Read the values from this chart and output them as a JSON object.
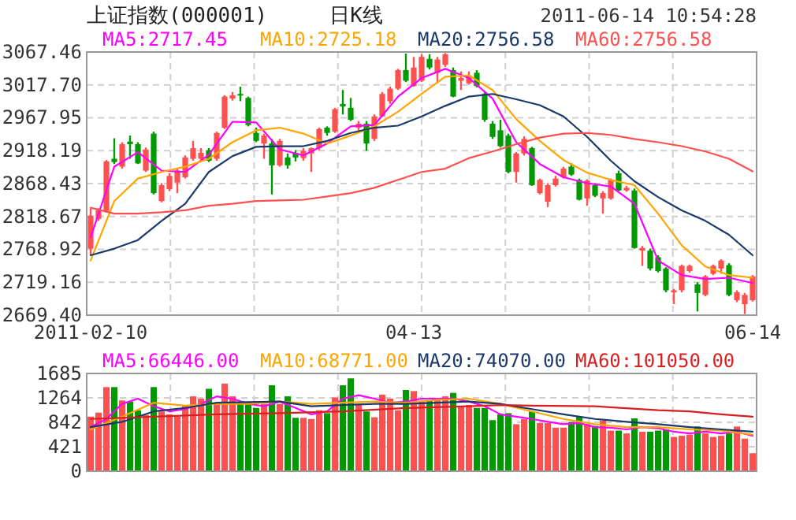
{
  "chart_data": [
    {
      "type": "candlestick",
      "title": "上证指数(000001)",
      "subtitle": "日K线",
      "annotations": [
        "2011-06-14 10:54:28"
      ],
      "categories": [
        "2011-02-10",
        null,
        null,
        null,
        null,
        null,
        null,
        null,
        null,
        null,
        null,
        null,
        null,
        null,
        null,
        null,
        null,
        null,
        null,
        null,
        null,
        null,
        null,
        null,
        null,
        null,
        null,
        null,
        null,
        null,
        null,
        null,
        null,
        null,
        null,
        null,
        null,
        null,
        null,
        null,
        null,
        "04-13",
        null,
        null,
        null,
        null,
        null,
        null,
        null,
        null,
        null,
        null,
        null,
        null,
        null,
        null,
        null,
        null,
        null,
        null,
        null,
        null,
        null,
        null,
        null,
        null,
        null,
        null,
        null,
        null,
        null,
        null,
        null,
        null,
        null,
        null,
        null,
        null,
        null,
        null,
        null,
        null,
        null,
        null,
        "06-14"
      ],
      "ohlc": [
        [
          2770,
          2831,
          2760,
          2820
        ],
        [
          2815,
          2831,
          2812,
          2828
        ],
        [
          2827,
          2904,
          2825,
          2902
        ],
        [
          2906,
          2937,
          2898,
          2901
        ],
        [
          2894,
          2931,
          2891,
          2928
        ],
        [
          2932,
          2941,
          2906,
          2928
        ],
        [
          2928,
          2931,
          2898,
          2899
        ],
        [
          2888,
          2923,
          2886,
          2920
        ],
        [
          2944,
          2947,
          2852,
          2854
        ],
        [
          2842,
          2869,
          2840,
          2866
        ],
        [
          2860,
          2884,
          2857,
          2880
        ],
        [
          2870,
          2891,
          2854,
          2888
        ],
        [
          2878,
          2911,
          2876,
          2908
        ],
        [
          2906,
          2933,
          2903,
          2922
        ],
        [
          2906,
          2922,
          2903,
          2915
        ],
        [
          2919,
          2922,
          2901,
          2903
        ],
        [
          2906,
          2947,
          2903,
          2945
        ],
        [
          2953,
          3002,
          2951,
          3000
        ],
        [
          2997,
          3007,
          2994,
          3002
        ],
        [
          3004,
          3015,
          2993,
          3003
        ],
        [
          2998,
          3000,
          2955,
          2957
        ],
        [
          2945,
          2953,
          2931,
          2933
        ],
        [
          2929,
          2944,
          2906,
          2941
        ],
        [
          2929,
          2936,
          2852,
          2896
        ],
        [
          2896,
          2936,
          2894,
          2933
        ],
        [
          2908,
          2914,
          2891,
          2896
        ],
        [
          2915,
          2919,
          2902,
          2908
        ],
        [
          2907,
          2922,
          2903,
          2918
        ],
        [
          2914,
          2923,
          2886,
          2922
        ],
        [
          2922,
          2953,
          2919,
          2951
        ],
        [
          2953,
          2955,
          2941,
          2945
        ],
        [
          2947,
          2983,
          2945,
          2981
        ],
        [
          2989,
          3010,
          2973,
          2985
        ],
        [
          2983,
          2998,
          2963,
          2965
        ],
        [
          2953,
          2963,
          2949,
          2959
        ],
        [
          2959,
          2963,
          2918,
          2929
        ],
        [
          2936,
          2973,
          2933,
          2970
        ],
        [
          2970,
          3007,
          2969,
          3004
        ],
        [
          2993,
          3015,
          2989,
          3012
        ],
        [
          3012,
          3042,
          3010,
          3040
        ],
        [
          3040,
          3065,
          3022,
          3024
        ],
        [
          3016,
          3060,
          3015,
          3044
        ],
        [
          3024,
          3064,
          3022,
          3060
        ],
        [
          3057,
          3064,
          3041,
          3044
        ],
        [
          3036,
          3060,
          3020,
          3056
        ],
        [
          3048,
          3066,
          3045,
          3064
        ],
        [
          3040,
          3044,
          2999,
          3000
        ],
        [
          3024,
          3038,
          3010,
          3028
        ],
        [
          3020,
          3038,
          3018,
          3032
        ],
        [
          3036,
          3040,
          3014,
          3016
        ],
        [
          3004,
          3007,
          2962,
          2965
        ],
        [
          2959,
          2963,
          2936,
          2939
        ],
        [
          2949,
          2965,
          2923,
          2925
        ],
        [
          2941,
          2944,
          2884,
          2886
        ],
        [
          2886,
          2916,
          2870,
          2914
        ],
        [
          2914,
          2940,
          2911,
          2936
        ],
        [
          2922,
          2924,
          2865,
          2866
        ],
        [
          2854,
          2876,
          2852,
          2874
        ],
        [
          2841,
          2869,
          2833,
          2866
        ],
        [
          2866,
          2880,
          2864,
          2876
        ],
        [
          2878,
          2894,
          2876,
          2891
        ],
        [
          2894,
          2899,
          2880,
          2882
        ],
        [
          2874,
          2876,
          2843,
          2844
        ],
        [
          2846,
          2875,
          2835,
          2873
        ],
        [
          2866,
          2869,
          2848,
          2850
        ],
        [
          2846,
          2857,
          2823,
          2854
        ],
        [
          2846,
          2876,
          2844,
          2874
        ],
        [
          2884,
          2888,
          2857,
          2858
        ],
        [
          2858,
          2865,
          2856,
          2862
        ],
        [
          2858,
          2861,
          2770,
          2771
        ],
        [
          2767,
          2774,
          2744,
          2771
        ],
        [
          2767,
          2770,
          2737,
          2740
        ],
        [
          2757,
          2760,
          2734,
          2736
        ],
        [
          2740,
          2742,
          2704,
          2707
        ],
        [
          2704,
          2709,
          2686,
          2707
        ],
        [
          2707,
          2746,
          2704,
          2744
        ],
        [
          2736,
          2746,
          2734,
          2744
        ],
        [
          2716,
          2719,
          2675,
          2703
        ],
        [
          2700,
          2730,
          2698,
          2728
        ],
        [
          2732,
          2746,
          2730,
          2744
        ],
        [
          2740,
          2754,
          2732,
          2752
        ],
        [
          2745,
          2748,
          2698,
          2700
        ],
        [
          2692,
          2707,
          2689,
          2704
        ],
        [
          2686,
          2703,
          2671,
          2700
        ],
        [
          2692,
          2730,
          2690,
          2728
        ]
      ],
      "colors": [
        "#ff5050",
        "#ff5050",
        "#ff5050",
        "#009900",
        "#ff5050",
        "#009900",
        "#009900",
        "#ff5050",
        "#009900",
        "#ff5050",
        "#ff5050",
        "#ff5050",
        "#ff5050",
        "#ff5050",
        "#ff5050",
        "#009900",
        "#ff5050",
        "#ff5050",
        "#ff5050",
        "#009900",
        "#009900",
        "#009900",
        "#ff5050",
        "#009900",
        "#ff5050",
        "#009900",
        "#009900",
        "#ff5050",
        "#ff5050",
        "#ff5050",
        "#009900",
        "#ff5050",
        "#009900",
        "#009900",
        "#ff5050",
        "#009900",
        "#ff5050",
        "#ff5050",
        "#ff5050",
        "#ff5050",
        "#009900",
        "#ff5050",
        "#ff5050",
        "#009900",
        "#ff5050",
        "#ff5050",
        "#009900",
        "#ff5050",
        "#ff5050",
        "#009900",
        "#009900",
        "#009900",
        "#009900",
        "#009900",
        "#ff5050",
        "#ff5050",
        "#009900",
        "#ff5050",
        "#ff5050",
        "#ff5050",
        "#ff5050",
        "#009900",
        "#009900",
        "#ff5050",
        "#009900",
        "#ff5050",
        "#ff5050",
        "#009900",
        "#ff5050",
        "#009900",
        "#ff5050",
        "#009900",
        "#009900",
        "#009900",
        "#ff5050",
        "#ff5050",
        "#ff5050",
        "#009900",
        "#ff5050",
        "#ff5050",
        "#ff5050",
        "#009900",
        "#ff5050",
        "#ff5050",
        "#ff5050"
      ],
      "series": [
        {
          "name": "MA5:2717.45",
          "type": "line",
          "color": "#ff00ff",
          "values": [
            2787,
            null,
            null,
            2894,
            null,
            null,
            2916,
            null,
            null,
            2888,
            null,
            null,
            2886,
            null,
            null,
            2912,
            null,
            null,
            2962,
            null,
            null,
            2961,
            null,
            null,
            2920,
            null,
            null,
            2911,
            null,
            null,
            2929,
            null,
            null,
            2955,
            null,
            null,
            2957,
            null,
            null,
            3000,
            null,
            null,
            3028,
            null,
            null,
            3042,
            null,
            null,
            3028,
            null,
            null,
            2997,
            null,
            null,
            2931,
            null,
            null,
            2898,
            null,
            null,
            2878,
            null,
            null,
            2869,
            null,
            null,
            2864,
            null,
            null,
            2838,
            null,
            null,
            2752,
            null,
            null,
            2730,
            null,
            null,
            2724,
            null,
            null,
            2726,
            null,
            null,
            2718
          ]
        },
        {
          "name": "MA10:2725.18",
          "type": "line",
          "color": "#ffa500",
          "values": [
            2752,
            null,
            null,
            2842,
            null,
            null,
            2876,
            null,
            null,
            2886,
            null,
            null,
            2894,
            null,
            null,
            2906,
            null,
            null,
            2931,
            null,
            null,
            2949,
            null,
            null,
            2953,
            null,
            null,
            2944,
            null,
            null,
            2929,
            null,
            null,
            2941,
            null,
            null,
            2955,
            null,
            null,
            2977,
            null,
            null,
            3004,
            null,
            null,
            3030,
            null,
            null,
            3032,
            null,
            null,
            3010,
            null,
            null,
            2966,
            null,
            null,
            2933,
            null,
            null,
            2904,
            null,
            null,
            2885,
            null,
            null,
            2874,
            null,
            null,
            2866,
            null,
            null,
            2823,
            null,
            null,
            2775,
            null,
            null,
            2743,
            null,
            null,
            2730,
            null,
            null,
            2726
          ]
        },
        {
          "name": "MA20:2756.58",
          "type": "line",
          "color": "#1a3a6b",
          "values": [
            2760,
            null,
            null,
            2770,
            null,
            null,
            2783,
            null,
            null,
            2812,
            null,
            null,
            2838,
            null,
            null,
            2886,
            null,
            null,
            2910,
            null,
            null,
            2924,
            null,
            null,
            2925,
            null,
            null,
            2925,
            null,
            null,
            2933,
            null,
            null,
            2945,
            null,
            null,
            2953,
            null,
            null,
            2956,
            null,
            null,
            2970,
            null,
            null,
            2986,
            null,
            null,
            3000,
            null,
            null,
            3004,
            null,
            null,
            2996,
            null,
            null,
            2987,
            null,
            null,
            2970,
            null,
            null,
            2939,
            null,
            null,
            2903,
            null,
            null,
            2872,
            null,
            null,
            2848,
            null,
            null,
            2828,
            null,
            null,
            2812,
            null,
            null,
            2791,
            null,
            null,
            2760
          ]
        },
        {
          "name": "MA60:2756.58",
          "type": "line",
          "color": "#ff5050",
          "values": [
            2832,
            null,
            null,
            2823,
            null,
            null,
            2823,
            null,
            null,
            2825,
            null,
            null,
            2828,
            null,
            null,
            2835,
            null,
            null,
            2838,
            null,
            null,
            2842,
            null,
            null,
            2843,
            null,
            null,
            2844,
            null,
            null,
            2849,
            null,
            null,
            2854,
            null,
            null,
            2862,
            null,
            null,
            2874,
            null,
            null,
            2886,
            null,
            null,
            2891,
            null,
            null,
            2907,
            null,
            null,
            2917,
            null,
            null,
            2928,
            null,
            null,
            2938,
            null,
            null,
            2944,
            null,
            null,
            2945,
            null,
            null,
            2942,
            null,
            null,
            2936,
            null,
            null,
            2931,
            null,
            null,
            2925,
            null,
            null,
            2917,
            null,
            null,
            2906,
            null,
            null,
            2887
          ]
        }
      ],
      "ylim": [
        2669.4,
        3067.46
      ],
      "yticks": [
        {
          "value": 2669.4,
          "label": "2669.40"
        },
        2719.16,
        2768.92,
        2818.67,
        2868.43,
        2918.19,
        2967.95,
        {
          "value": 3017.7,
          "label": "3017.70"
        },
        3067.46
      ],
      "grid": true,
      "legend": "top"
    },
    {
      "type": "bar",
      "tick_labels": "y",
      "categories": [
        null,
        null,
        null,
        null,
        null,
        null,
        null,
        null,
        null,
        null,
        null,
        null,
        null,
        null,
        null,
        null,
        null,
        null,
        null,
        null,
        null,
        null,
        null,
        null,
        null,
        null,
        null,
        null,
        null,
        null,
        null,
        null,
        null,
        null,
        null,
        null,
        null,
        null,
        null,
        null,
        null,
        null,
        null,
        null,
        null,
        null,
        null,
        null,
        null,
        null,
        null,
        null,
        null,
        null,
        null,
        null,
        null,
        null,
        null,
        null,
        null,
        null,
        null,
        null,
        null,
        null,
        null,
        null,
        null,
        null,
        null,
        null,
        null,
        null,
        null,
        null,
        null,
        null,
        null,
        null,
        null,
        null,
        null,
        null,
        null
      ],
      "values": [
        940,
        1010,
        1450,
        1450,
        1220,
        1200,
        1050,
        970,
        1450,
        1030,
        980,
        940,
        1130,
        1290,
        1250,
        1420,
        1160,
        1510,
        1290,
        1180,
        1180,
        1090,
        1160,
        1480,
        1160,
        1290,
        920,
        920,
        900,
        1050,
        1000,
        1270,
        1480,
        1600,
        1160,
        1030,
        930,
        1320,
        1250,
        1050,
        1400,
        1380,
        1200,
        1220,
        1260,
        1290,
        1350,
        1120,
        1140,
        1090,
        1090,
        880,
        980,
        1000,
        810,
        900,
        1030,
        830,
        830,
        750,
        750,
        850,
        940,
        810,
        780,
        870,
        700,
        700,
        650,
        910,
        680,
        680,
        700,
        720,
        590,
        610,
        630,
        770,
        650,
        590,
        610,
        650,
        770,
        560,
        310
      ],
      "colors": [
        "#ff5050",
        "#ff5050",
        "#ff5050",
        "#009900",
        "#ff5050",
        "#009900",
        "#009900",
        "#ff5050",
        "#009900",
        "#ff5050",
        "#ff5050",
        "#ff5050",
        "#ff5050",
        "#ff5050",
        "#ff5050",
        "#009900",
        "#ff5050",
        "#ff5050",
        "#ff5050",
        "#009900",
        "#009900",
        "#009900",
        "#ff5050",
        "#009900",
        "#ff5050",
        "#009900",
        "#009900",
        "#ff5050",
        "#ff5050",
        "#ff5050",
        "#009900",
        "#ff5050",
        "#009900",
        "#009900",
        "#ff5050",
        "#009900",
        "#ff5050",
        "#ff5050",
        "#ff5050",
        "#ff5050",
        "#009900",
        "#ff5050",
        "#ff5050",
        "#009900",
        "#ff5050",
        "#ff5050",
        "#009900",
        "#ff5050",
        "#ff5050",
        "#009900",
        "#009900",
        "#009900",
        "#009900",
        "#009900",
        "#ff5050",
        "#ff5050",
        "#009900",
        "#ff5050",
        "#ff5050",
        "#ff5050",
        "#ff5050",
        "#009900",
        "#009900",
        "#ff5050",
        "#009900",
        "#ff5050",
        "#ff5050",
        "#009900",
        "#ff5050",
        "#009900",
        "#ff5050",
        "#009900",
        "#009900",
        "#009900",
        "#ff5050",
        "#ff5050",
        "#ff5050",
        "#009900",
        "#ff5050",
        "#ff5050",
        "#ff5050",
        "#009900",
        "#ff5050",
        "#ff5050",
        "#ff5050"
      ],
      "series": [
        {
          "name": "MA5:66446.00",
          "type": "line",
          "color": "#ff00ff",
          "values": [
            760,
            null,
            900,
            null,
            1160,
            null,
            1250,
            null,
            1120,
            null,
            1030,
            null,
            1070,
            null,
            1160,
            null,
            1290,
            null,
            1250,
            null,
            1160,
            null,
            1120,
            null,
            1200,
            null,
            1090,
            null,
            980,
            null,
            1030,
            null,
            1250,
            null,
            1310,
            null,
            1250,
            null,
            1180,
            null,
            1200,
            null,
            1250,
            null,
            1250,
            null,
            1250,
            null,
            1200,
            null,
            1120,
            null,
            980,
            null,
            940,
            null,
            900,
            null,
            850,
            null,
            810,
            null,
            830,
            null,
            760,
            null,
            750,
            null,
            720,
            null,
            760,
            null,
            740,
            null,
            680,
            null,
            650,
            null,
            680,
            null,
            650,
            null,
            680,
            null,
            610
          ]
        },
        {
          "name": "MA10:68771.00",
          "type": "line",
          "color": "#ffa500",
          "values": [
            720,
            null,
            null,
            null,
            940,
            null,
            null,
            null,
            1180,
            null,
            null,
            null,
            1130,
            null,
            null,
            null,
            1160,
            null,
            null,
            null,
            1160,
            null,
            null,
            null,
            1200,
            null,
            null,
            null,
            1160,
            null,
            null,
            null,
            1180,
            null,
            null,
            null,
            1200,
            null,
            null,
            null,
            1180,
            null,
            null,
            null,
            1230,
            null,
            null,
            null,
            1250,
            null,
            null,
            null,
            1160,
            null,
            null,
            null,
            1030,
            null,
            null,
            null,
            900,
            null,
            null,
            null,
            810,
            null,
            null,
            null,
            760,
            null,
            null,
            null,
            760,
            null,
            null,
            null,
            720,
            null,
            null,
            null,
            700,
            null,
            null,
            null,
            630
          ]
        },
        {
          "name": "MA20:74070.00",
          "type": "line",
          "color": "#1a3a6b",
          "values": [
            760,
            null,
            null,
            null,
            850,
            null,
            null,
            null,
            1030,
            null,
            null,
            null,
            1090,
            null,
            null,
            null,
            1180,
            null,
            null,
            null,
            1190,
            null,
            null,
            null,
            1200,
            null,
            null,
            null,
            1120,
            null,
            null,
            null,
            1140,
            null,
            null,
            null,
            1160,
            null,
            null,
            null,
            1160,
            null,
            null,
            null,
            1180,
            null,
            null,
            null,
            1200,
            null,
            null,
            null,
            1160,
            null,
            null,
            null,
            1070,
            null,
            null,
            null,
            980,
            null,
            null,
            null,
            900,
            null,
            null,
            null,
            850,
            null,
            null,
            null,
            810,
            null,
            null,
            null,
            760,
            null,
            null,
            null,
            720,
            null,
            null,
            null,
            680
          ]
        },
        {
          "name": "MA60:101050.00",
          "type": "line",
          "color": "#d81e1e",
          "values": [
            900,
            null,
            null,
            null,
            null,
            null,
            null,
            null,
            940,
            null,
            null,
            null,
            null,
            null,
            null,
            null,
            980,
            null,
            null,
            null,
            null,
            null,
            null,
            null,
            1000,
            null,
            null,
            null,
            null,
            null,
            null,
            null,
            1030,
            null,
            null,
            null,
            null,
            null,
            null,
            null,
            1090,
            null,
            null,
            null,
            null,
            null,
            null,
            null,
            1120,
            null,
            null,
            null,
            1140,
            null,
            null,
            null,
            1130,
            null,
            null,
            null,
            null,
            null,
            null,
            null,
            1120,
            null,
            null,
            null,
            null,
            null,
            null,
            null,
            1050,
            null,
            null,
            null,
            1030,
            null,
            null,
            null,
            980,
            null,
            null,
            null,
            940
          ]
        }
      ],
      "ylim": [
        0,
        1685
      ],
      "yticks": [
        0,
        421,
        842,
        1264,
        1685
      ],
      "grid": true,
      "legend": "top"
    }
  ]
}
